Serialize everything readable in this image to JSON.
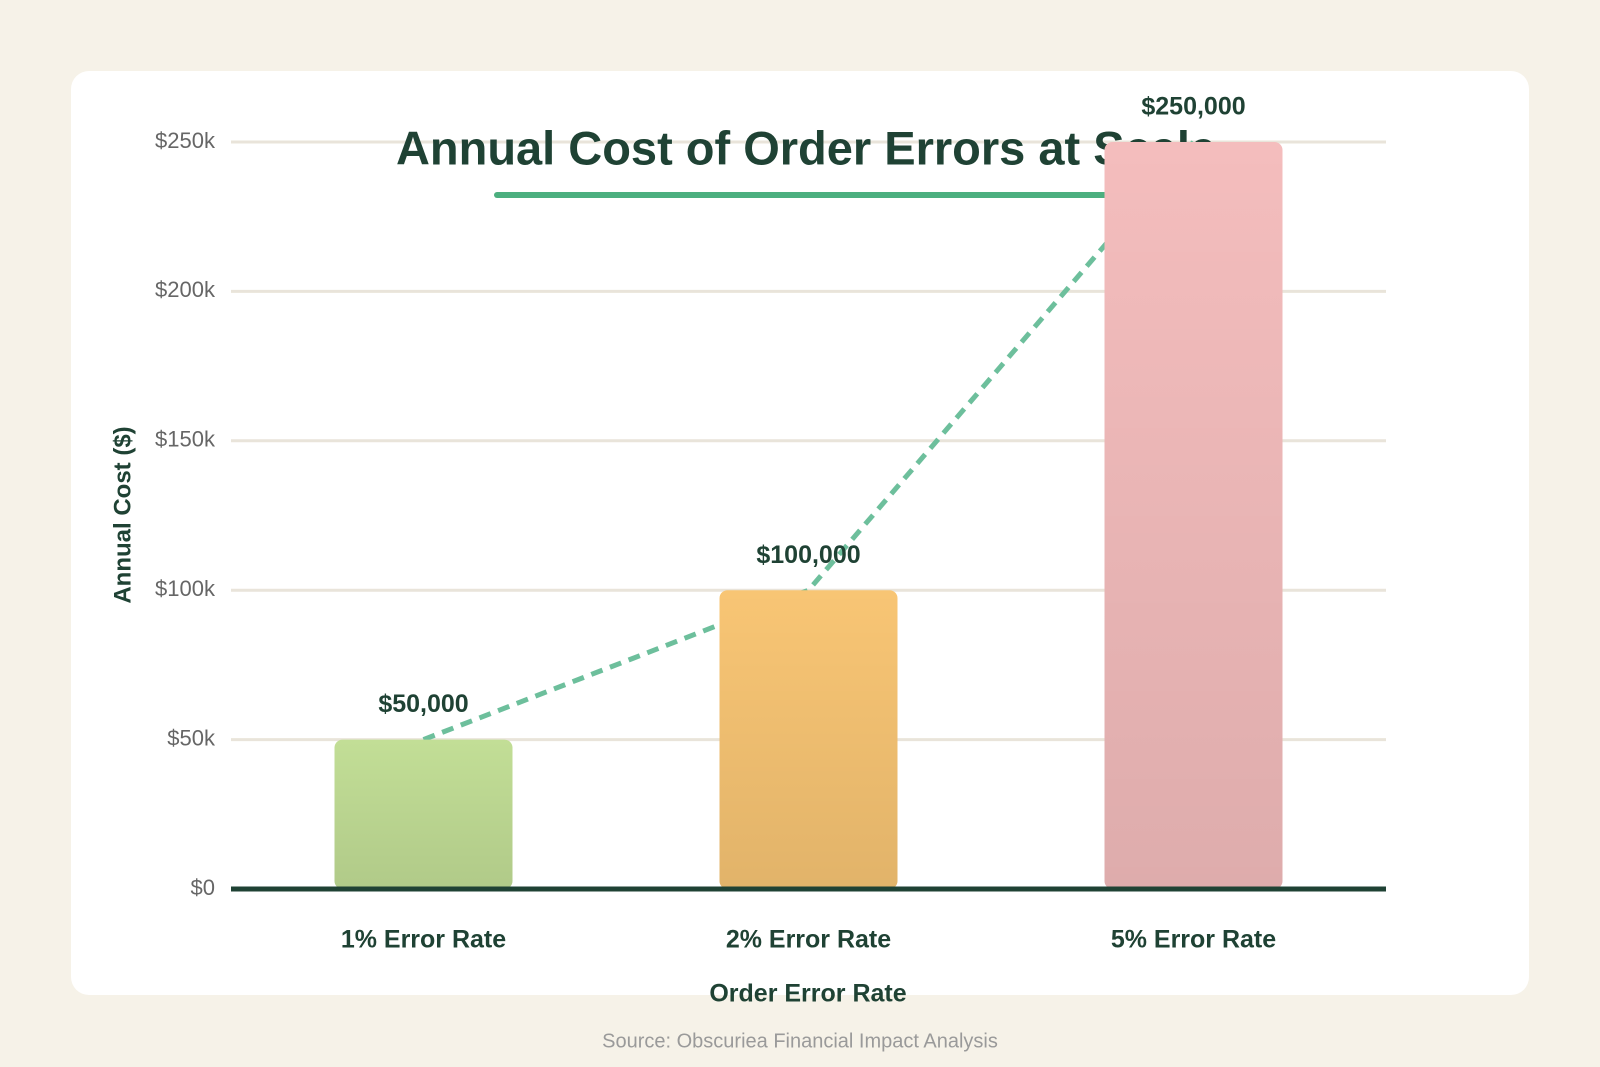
{
  "chart_data": {
    "type": "bar",
    "title": "Annual Cost of Order Errors at Scale",
    "x_label": "Order Error Rate",
    "y_label": "Annual Cost ($)",
    "source": "Source: Obscuriea Financial Impact Analysis",
    "categories": [
      "1% Error Rate",
      "2% Error Rate",
      "5% Error Rate"
    ],
    "values": [
      50000,
      100000,
      250000
    ],
    "value_labels": [
      "$50,000",
      "$100,000",
      "$250,000"
    ],
    "colors": [
      "#c2de96",
      "#f8c574",
      "#f4bdbd"
    ],
    "trend_line_color": "#6dbf9c",
    "ylim": [
      0,
      250000
    ],
    "yticks": [
      {
        "value": 0,
        "label": "$0"
      },
      {
        "value": 50000,
        "label": "$50k"
      },
      {
        "value": 100000,
        "label": "$100k"
      },
      {
        "value": 150000,
        "label": "$150k"
      },
      {
        "value": 200000,
        "label": "$200k"
      },
      {
        "value": 250000,
        "label": "$250k"
      }
    ],
    "grid": true
  }
}
